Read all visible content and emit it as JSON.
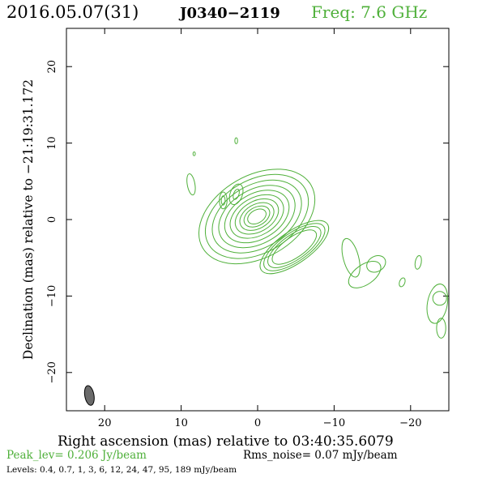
{
  "header": {
    "date_label": "2016.05.07(31)",
    "source_name": "J0340−2119",
    "freq_label": "Freq: 7.6 GHz"
  },
  "colors": {
    "contour": "#4fb03a",
    "beam_fill": "#6a6a6a",
    "text": "#000000",
    "green_text": "#4fb03a"
  },
  "footer": {
    "peak_label": "Peak_lev=  0.206 Jy/beam",
    "rms_label": "Rms_noise= 0.07 mJy/beam",
    "levels_label": "Levels: 0.4, 0.7,   1,   3,   6,  12,  24,  47,  95, 189 mJy/beam"
  },
  "chart_data": {
    "type": "contour",
    "title": "J0340−2119",
    "xlabel": "Right ascension (mas) relative to 03:40:35.6079",
    "ylabel": "Declination (mas) relative to −21:19:31.172",
    "xlim": [
      25,
      -25
    ],
    "ylim": [
      -25,
      25
    ],
    "x_ticks": [
      20,
      10,
      0,
      -10,
      -20
    ],
    "x_tick_labels": [
      "20",
      "10",
      "0",
      "−10",
      "−20"
    ],
    "y_ticks": [
      20,
      10,
      0,
      -10,
      -20
    ],
    "y_tick_labels": [
      "20",
      "10",
      "0",
      "−10",
      "−20"
    ],
    "levels_mJy_per_beam": [
      0.4,
      0.7,
      1,
      3,
      6,
      12,
      24,
      47,
      95,
      189
    ],
    "peak_Jy_per_beam": 0.206,
    "rms_noise_mJy_per_beam": 0.07,
    "beam": {
      "x": 22,
      "y": -23,
      "major_mas": 2.6,
      "minor_mas": 1.2,
      "pa_deg": -10
    },
    "core_components": [
      {
        "name": "core",
        "x": 0.1,
        "y": 0.4,
        "rx": 1.3,
        "ry": 0.85,
        "angle_deg": -30,
        "levels": 10,
        "level_scales": [
          1.0,
          1.4,
          1.85,
          2.35,
          2.9,
          3.5,
          4.15,
          4.85,
          5.6,
          6.3
        ]
      },
      {
        "name": "jet",
        "x": -4.8,
        "y": -3.6,
        "rx": 3.4,
        "ry": 1.35,
        "angle_deg": -35,
        "levels": 4,
        "level_scales": [
          1.0,
          1.2,
          1.38,
          1.55
        ]
      }
    ],
    "features": [
      {
        "name": "blob-1",
        "x": 8.7,
        "y": 4.6,
        "rx": 0.5,
        "ry": 1.4,
        "angle_deg": -10
      },
      {
        "name": "blob-2",
        "x": 4.5,
        "y": 2.5,
        "rx": 0.5,
        "ry": 1.1,
        "angle_deg": 0
      },
      {
        "name": "blob-3",
        "x": 4.5,
        "y": 2.5,
        "rx": 0.25,
        "ry": 0.6,
        "angle_deg": 0
      },
      {
        "name": "blob-4",
        "x": 2.8,
        "y": 3.3,
        "rx": 0.8,
        "ry": 1.4,
        "angle_deg": 20
      },
      {
        "name": "blob-5",
        "x": 2.8,
        "y": 3.3,
        "rx": 0.35,
        "ry": 0.7,
        "angle_deg": 20
      },
      {
        "name": "blob-6",
        "x": 2.8,
        "y": 10.3,
        "rx": 0.18,
        "ry": 0.4,
        "angle_deg": 0
      },
      {
        "name": "blob-7",
        "x": 8.3,
        "y": 8.6,
        "rx": 0.15,
        "ry": 0.25,
        "angle_deg": 0
      },
      {
        "name": "blob-8",
        "x": -12.2,
        "y": -5.0,
        "rx": 1.0,
        "ry": 2.6,
        "angle_deg": -15
      },
      {
        "name": "blob-9",
        "x": -15.5,
        "y": -5.8,
        "rx": 1.3,
        "ry": 1.0,
        "angle_deg": -30
      },
      {
        "name": "blob-10",
        "x": -14.0,
        "y": -7.2,
        "rx": 2.4,
        "ry": 1.3,
        "angle_deg": -35
      },
      {
        "name": "blob-11",
        "x": -18.9,
        "y": -8.2,
        "rx": 0.35,
        "ry": 0.6,
        "angle_deg": 20
      },
      {
        "name": "blob-12",
        "x": -21.0,
        "y": -5.6,
        "rx": 0.4,
        "ry": 0.9,
        "angle_deg": 10
      },
      {
        "name": "blob-13",
        "x": -23.5,
        "y": -11.0,
        "rx": 1.3,
        "ry": 2.6,
        "angle_deg": 10
      },
      {
        "name": "blob-14",
        "x": -23.8,
        "y": -10.3,
        "rx": 0.9,
        "ry": 0.9,
        "angle_deg": 0
      },
      {
        "name": "blob-15",
        "x": -24.0,
        "y": -14.2,
        "rx": 0.6,
        "ry": 1.3,
        "angle_deg": 0
      }
    ]
  }
}
